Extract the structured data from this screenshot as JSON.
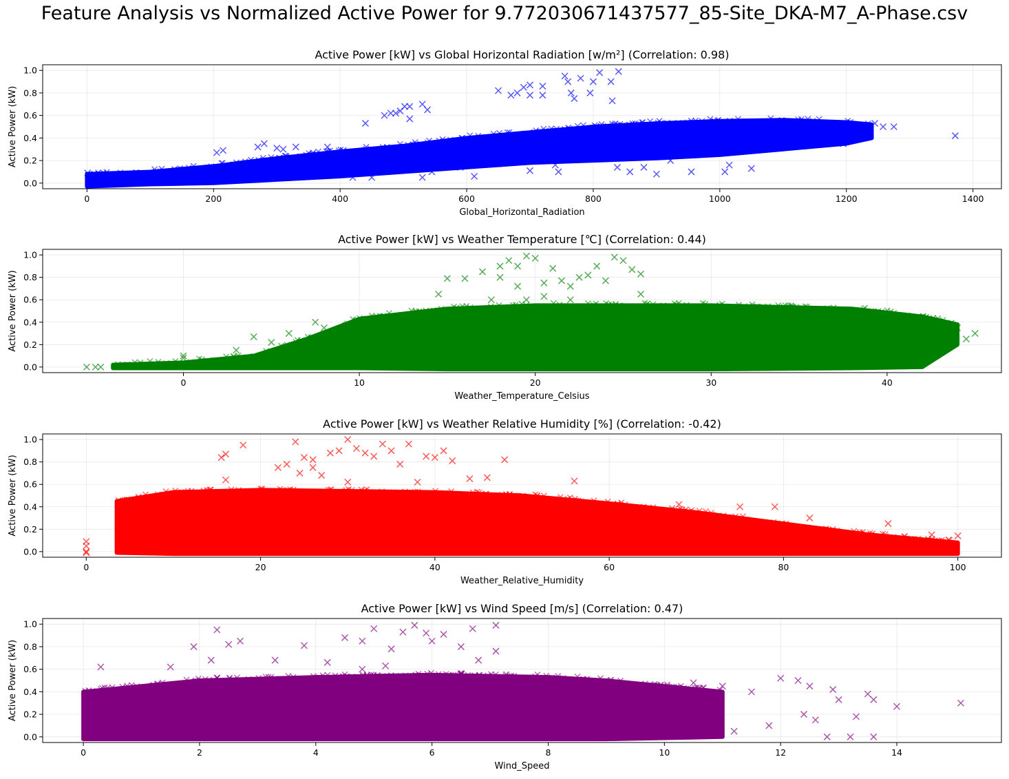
{
  "figure": {
    "suptitle": "Feature Analysis vs Normalized Active Power for 9.772030671437577_85-Site_DKA-M7_A-Phase.csv"
  },
  "chart_data": [
    {
      "type": "scatter",
      "title": "Active Power [kW] vs Global Horizontal Radiation [w/m²] (Correlation: 0.98)",
      "xlabel": "Global_Horizontal_Radiation",
      "ylabel": "Active Power (kW)",
      "xlim": [
        -70,
        1445
      ],
      "ylim": [
        -0.05,
        1.05
      ],
      "xticks": [
        0,
        200,
        400,
        600,
        800,
        1000,
        1200,
        1400
      ],
      "yticks": [
        0.0,
        0.2,
        0.4,
        0.6,
        0.8,
        1.0
      ],
      "color": "#0000ff",
      "marker": "x",
      "grid": true,
      "density_band": [
        [
          0,
          -0.03,
          0.08
        ],
        [
          50,
          -0.02,
          0.09
        ],
        [
          100,
          -0.01,
          0.1
        ],
        [
          200,
          0.0,
          0.15
        ],
        [
          300,
          0.03,
          0.22
        ],
        [
          400,
          0.06,
          0.28
        ],
        [
          500,
          0.1,
          0.33
        ],
        [
          600,
          0.14,
          0.4
        ],
        [
          700,
          0.18,
          0.45
        ],
        [
          800,
          0.2,
          0.5
        ],
        [
          900,
          0.22,
          0.53
        ],
        [
          1000,
          0.25,
          0.55
        ],
        [
          1100,
          0.3,
          0.56
        ],
        [
          1200,
          0.35,
          0.54
        ],
        [
          1240,
          0.4,
          0.52
        ]
      ],
      "outliers": [
        [
          1372,
          0.42
        ],
        [
          1275,
          0.5
        ],
        [
          1258,
          0.5
        ],
        [
          1245,
          0.53
        ],
        [
          1195,
          0.35
        ],
        [
          1130,
          0.35
        ],
        [
          1050,
          0.13
        ],
        [
          1015,
          0.16
        ],
        [
          1008,
          0.1
        ],
        [
          955,
          0.1
        ],
        [
          922,
          0.2
        ],
        [
          900,
          0.08
        ],
        [
          880,
          0.14
        ],
        [
          858,
          0.1
        ],
        [
          830,
          0.73
        ],
        [
          828,
          0.9
        ],
        [
          840,
          0.99
        ],
        [
          810,
          0.98
        ],
        [
          800,
          0.9
        ],
        [
          795,
          0.8
        ],
        [
          780,
          0.93
        ],
        [
          765,
          0.8
        ],
        [
          760,
          0.9
        ],
        [
          755,
          0.95
        ],
        [
          770,
          0.75
        ],
        [
          700,
          0.87
        ],
        [
          690,
          0.85
        ],
        [
          680,
          0.8
        ],
        [
          670,
          0.78
        ],
        [
          650,
          0.82
        ],
        [
          720,
          0.78
        ],
        [
          700,
          0.78
        ],
        [
          720,
          0.86
        ],
        [
          612,
          0.06
        ],
        [
          590,
          0.14
        ],
        [
          545,
          0.1
        ],
        [
          530,
          0.05
        ],
        [
          510,
          0.68
        ],
        [
          502,
          0.68
        ],
        [
          538,
          0.65
        ],
        [
          530,
          0.7
        ],
        [
          480,
          0.62
        ],
        [
          470,
          0.6
        ],
        [
          488,
          0.62
        ],
        [
          495,
          0.64
        ],
        [
          510,
          0.57
        ],
        [
          440,
          0.53
        ],
        [
          405,
          0.29
        ],
        [
          380,
          0.32
        ],
        [
          330,
          0.32
        ],
        [
          310,
          0.3
        ],
        [
          300,
          0.31
        ],
        [
          280,
          0.35
        ],
        [
          270,
          0.32
        ],
        [
          205,
          0.27
        ],
        [
          215,
          0.29
        ],
        [
          420,
          0.05
        ],
        [
          450,
          0.05
        ],
        [
          650,
          0.17
        ],
        [
          700,
          0.11
        ],
        [
          740,
          0.16
        ],
        [
          745,
          0.1
        ],
        [
          838,
          0.14
        ],
        [
          1,
          0.09
        ],
        [
          2,
          0.07
        ]
      ]
    },
    {
      "type": "scatter",
      "title": "Active Power [kW] vs Weather Temperature [℃] (Correlation: 0.44)",
      "xlabel": "Weather_Temperature_Celsius",
      "ylabel": "Active Power (kW)",
      "xlim": [
        -8,
        46.5
      ],
      "ylim": [
        -0.05,
        1.05
      ],
      "xticks": [
        0,
        10,
        20,
        30,
        40
      ],
      "yticks": [
        0.0,
        0.2,
        0.4,
        0.6,
        0.8,
        1.0
      ],
      "color": "#008000",
      "marker": "x",
      "grid": true,
      "density_band": [
        [
          -4,
          -0.01,
          0.02
        ],
        [
          0,
          -0.01,
          0.04
        ],
        [
          4,
          -0.01,
          0.1
        ],
        [
          7,
          -0.01,
          0.25
        ],
        [
          10,
          -0.01,
          0.43
        ],
        [
          15,
          -0.02,
          0.52
        ],
        [
          20,
          -0.02,
          0.55
        ],
        [
          30,
          -0.02,
          0.55
        ],
        [
          38,
          -0.01,
          0.52
        ],
        [
          42,
          0.0,
          0.45
        ],
        [
          44,
          0.2,
          0.38
        ]
      ],
      "outliers": [
        [
          -5.5,
          0.0
        ],
        [
          -5,
          0.0
        ],
        [
          -4.7,
          0.0
        ],
        [
          0,
          0.1
        ],
        [
          0,
          0.08
        ],
        [
          15,
          0.79
        ],
        [
          16,
          0.79
        ],
        [
          14.5,
          0.65
        ],
        [
          17,
          0.85
        ],
        [
          18,
          0.9
        ],
        [
          18.5,
          0.95
        ],
        [
          19,
          0.9
        ],
        [
          19.5,
          0.99
        ],
        [
          20,
          0.97
        ],
        [
          21,
          0.88
        ],
        [
          20.5,
          0.75
        ],
        [
          21.5,
          0.77
        ],
        [
          22,
          0.72
        ],
        [
          22.5,
          0.8
        ],
        [
          23,
          0.82
        ],
        [
          23.5,
          0.9
        ],
        [
          24,
          0.77
        ],
        [
          24.5,
          0.98
        ],
        [
          25,
          0.95
        ],
        [
          25.5,
          0.87
        ],
        [
          26,
          0.83
        ],
        [
          19,
          0.72
        ],
        [
          18,
          0.8
        ],
        [
          26,
          0.65
        ],
        [
          17.5,
          0.6
        ],
        [
          19.5,
          0.6
        ],
        [
          20.5,
          0.63
        ],
        [
          22,
          0.6
        ],
        [
          4,
          0.27
        ],
        [
          5,
          0.22
        ],
        [
          6,
          0.3
        ],
        [
          3,
          0.15
        ],
        [
          7.5,
          0.4
        ],
        [
          8,
          0.35
        ],
        [
          43,
          0.4
        ],
        [
          44,
          0.35
        ],
        [
          45,
          0.3
        ],
        [
          44.5,
          0.25
        ],
        [
          43.5,
          0.2
        ],
        [
          42.5,
          0.15
        ]
      ]
    },
    {
      "type": "scatter",
      "title": "Active Power [kW] vs Weather Relative Humidity [%] (Correlation: -0.42)",
      "xlabel": "Weather_Relative_Humidity",
      "ylabel": "Active Power (kW)",
      "xlim": [
        -5,
        105
      ],
      "ylim": [
        -0.05,
        1.05
      ],
      "xticks": [
        0,
        20,
        40,
        60,
        80,
        100
      ],
      "yticks": [
        0.0,
        0.2,
        0.4,
        0.6,
        0.8,
        1.0
      ],
      "color": "#ff0000",
      "marker": "x",
      "grid": true,
      "density_band": [
        [
          3.5,
          -0.01,
          0.45
        ],
        [
          10,
          -0.02,
          0.53
        ],
        [
          20,
          -0.02,
          0.55
        ],
        [
          30,
          -0.02,
          0.54
        ],
        [
          40,
          -0.02,
          0.53
        ],
        [
          50,
          -0.02,
          0.5
        ],
        [
          60,
          -0.02,
          0.43
        ],
        [
          70,
          -0.02,
          0.35
        ],
        [
          80,
          -0.02,
          0.25
        ],
        [
          90,
          -0.02,
          0.15
        ],
        [
          100,
          -0.02,
          0.08
        ]
      ],
      "outliers": [
        [
          0,
          0.0
        ],
        [
          0,
          0.05
        ],
        [
          0,
          0.09
        ],
        [
          0,
          -0.01
        ],
        [
          15.5,
          0.84
        ],
        [
          16,
          0.87
        ],
        [
          18,
          0.95
        ],
        [
          16,
          0.64
        ],
        [
          22,
          0.75
        ],
        [
          23,
          0.78
        ],
        [
          24,
          0.98
        ],
        [
          24.5,
          0.7
        ],
        [
          25,
          0.84
        ],
        [
          26,
          0.82
        ],
        [
          27,
          0.68
        ],
        [
          28,
          0.88
        ],
        [
          29,
          0.9
        ],
        [
          30,
          1.0
        ],
        [
          31,
          0.92
        ],
        [
          32,
          0.88
        ],
        [
          33,
          0.85
        ],
        [
          34,
          0.96
        ],
        [
          35,
          0.9
        ],
        [
          36,
          0.78
        ],
        [
          37,
          0.96
        ],
        [
          38,
          0.62
        ],
        [
          39,
          0.85
        ],
        [
          40,
          0.84
        ],
        [
          41,
          0.9
        ],
        [
          42,
          0.81
        ],
        [
          44,
          0.65
        ],
        [
          46,
          0.66
        ],
        [
          48,
          0.82
        ],
        [
          56,
          0.63
        ],
        [
          30,
          0.62
        ],
        [
          26,
          0.75
        ],
        [
          68,
          0.42
        ],
        [
          75,
          0.4
        ],
        [
          79,
          0.4
        ],
        [
          83,
          0.3
        ],
        [
          92,
          0.25
        ],
        [
          97,
          0.15
        ],
        [
          100,
          0.14
        ],
        [
          99,
          0.1
        ]
      ]
    },
    {
      "type": "scatter",
      "title": "Active Power [kW] vs Wind Speed [m/s] (Correlation: 0.47)",
      "xlabel": "Wind_Speed",
      "ylabel": "Active Power (kW)",
      "xlim": [
        -0.7,
        15.8
      ],
      "ylim": [
        -0.05,
        1.05
      ],
      "xticks": [
        0,
        2,
        4,
        6,
        8,
        10,
        12,
        14
      ],
      "yticks": [
        0.0,
        0.2,
        0.4,
        0.6,
        0.8,
        1.0
      ],
      "color": "#800080",
      "marker": "x",
      "grid": true,
      "density_band": [
        [
          0,
          -0.02,
          0.4
        ],
        [
          1,
          -0.02,
          0.45
        ],
        [
          2,
          -0.02,
          0.5
        ],
        [
          4,
          -0.02,
          0.53
        ],
        [
          6,
          -0.02,
          0.55
        ],
        [
          8,
          -0.02,
          0.53
        ],
        [
          9,
          -0.02,
          0.5
        ],
        [
          10,
          -0.01,
          0.45
        ],
        [
          11,
          0.0,
          0.4
        ]
      ],
      "outliers": [
        [
          0.3,
          0.62
        ],
        [
          1.5,
          0.62
        ],
        [
          1.9,
          0.8
        ],
        [
          2.3,
          0.95
        ],
        [
          2.2,
          0.68
        ],
        [
          2.5,
          0.82
        ],
        [
          2.7,
          0.85
        ],
        [
          3.3,
          0.68
        ],
        [
          3.8,
          0.81
        ],
        [
          4.2,
          0.66
        ],
        [
          4.5,
          0.88
        ],
        [
          4.8,
          0.85
        ],
        [
          5.0,
          0.96
        ],
        [
          5.3,
          0.78
        ],
        [
          5.5,
          0.93
        ],
        [
          5.7,
          0.99
        ],
        [
          5.9,
          0.92
        ],
        [
          6.0,
          0.85
        ],
        [
          6.2,
          0.91
        ],
        [
          6.5,
          0.8
        ],
        [
          6.7,
          0.96
        ],
        [
          7.1,
          0.99
        ],
        [
          7.1,
          0.76
        ],
        [
          6.8,
          0.68
        ],
        [
          5.2,
          0.63
        ],
        [
          4.8,
          0.6
        ],
        [
          10.5,
          0.48
        ],
        [
          11,
          0.45
        ],
        [
          11.5,
          0.4
        ],
        [
          12,
          0.52
        ],
        [
          12.3,
          0.5
        ],
        [
          12.5,
          0.45
        ],
        [
          12.9,
          0.42
        ],
        [
          13,
          0.33
        ],
        [
          13.3,
          0.18
        ],
        [
          13.5,
          0.38
        ],
        [
          13.6,
          0.33
        ],
        [
          14,
          0.27
        ],
        [
          15.1,
          0.3
        ],
        [
          13.6,
          0.0
        ],
        [
          13.2,
          0.0
        ],
        [
          12.8,
          0.0
        ],
        [
          12.6,
          0.15
        ],
        [
          12.4,
          0.2
        ],
        [
          11.8,
          0.1
        ],
        [
          11.2,
          0.05
        ],
        [
          10.8,
          0.22
        ],
        [
          10.3,
          0.18
        ],
        [
          9.8,
          0.08
        ]
      ]
    }
  ]
}
